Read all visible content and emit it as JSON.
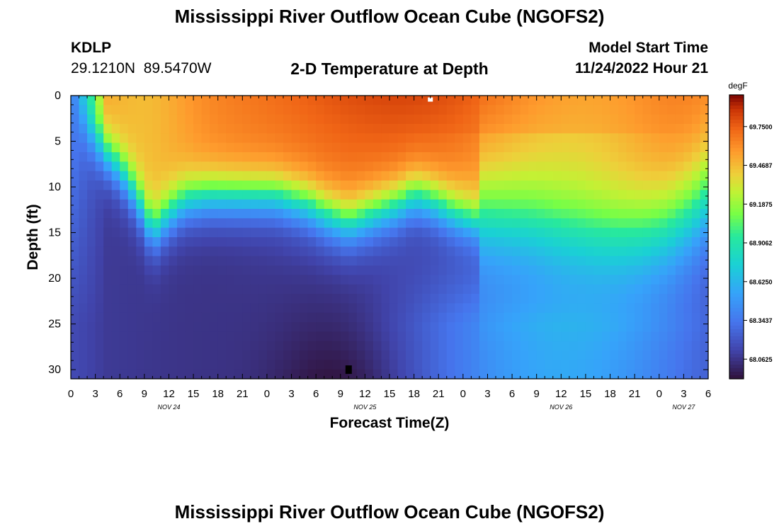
{
  "header": {
    "title": "Mississippi River Outflow Ocean Cube (NGOFS2)",
    "station_id": "KDLP",
    "station_coords": "29.1210N  89.5470W",
    "subtitle": "2-D Temperature at Depth",
    "model_start_label": "Model Start Time",
    "model_start_value": "11/24/2022 Hour 21"
  },
  "footer": {
    "title": "Mississippi River Outflow Ocean Cube (NGOFS2)"
  },
  "chart_data": {
    "type": "heatmap",
    "xlabel": "Forecast Time(Z)",
    "ylabel": "Depth (ft)",
    "x_unit": "hours",
    "xlim": [
      0,
      78
    ],
    "ylim": [
      0,
      31
    ],
    "y_inverted": true,
    "x_tick_labels": [
      "0",
      "3",
      "6",
      "9",
      "12",
      "15",
      "18",
      "21",
      "0",
      "3",
      "6",
      "9",
      "12",
      "15",
      "18",
      "21",
      "0",
      "3",
      "6",
      "9",
      "12",
      "15",
      "18",
      "21",
      "0",
      "3",
      "6"
    ],
    "y_ticks": [
      0,
      5,
      10,
      15,
      20,
      25,
      30
    ],
    "date_labels": [
      {
        "label": "NOV 24",
        "hour": 12
      },
      {
        "label": "NOV 25",
        "hour": 36
      },
      {
        "label": "NOV 26",
        "hour": 60
      },
      {
        "label": "NOV 27",
        "hour": 75
      }
    ],
    "colorbar": {
      "unit": "degF",
      "min": 67.92,
      "max": 69.98,
      "tick_labels": [
        "69.7500",
        "69.4687",
        "69.1875",
        "68.9062",
        "68.6250",
        "68.3437",
        "68.0625"
      ],
      "tick_values": [
        69.75,
        69.46875,
        69.1875,
        68.90625,
        68.625,
        68.34375,
        68.0625
      ]
    },
    "markers": [
      {
        "type": "max",
        "hour": 44,
        "depth": 0.2,
        "color": "#ffffff"
      },
      {
        "type": "min",
        "hour": 34,
        "depth": 30,
        "color": "#000000"
      }
    ]
  }
}
